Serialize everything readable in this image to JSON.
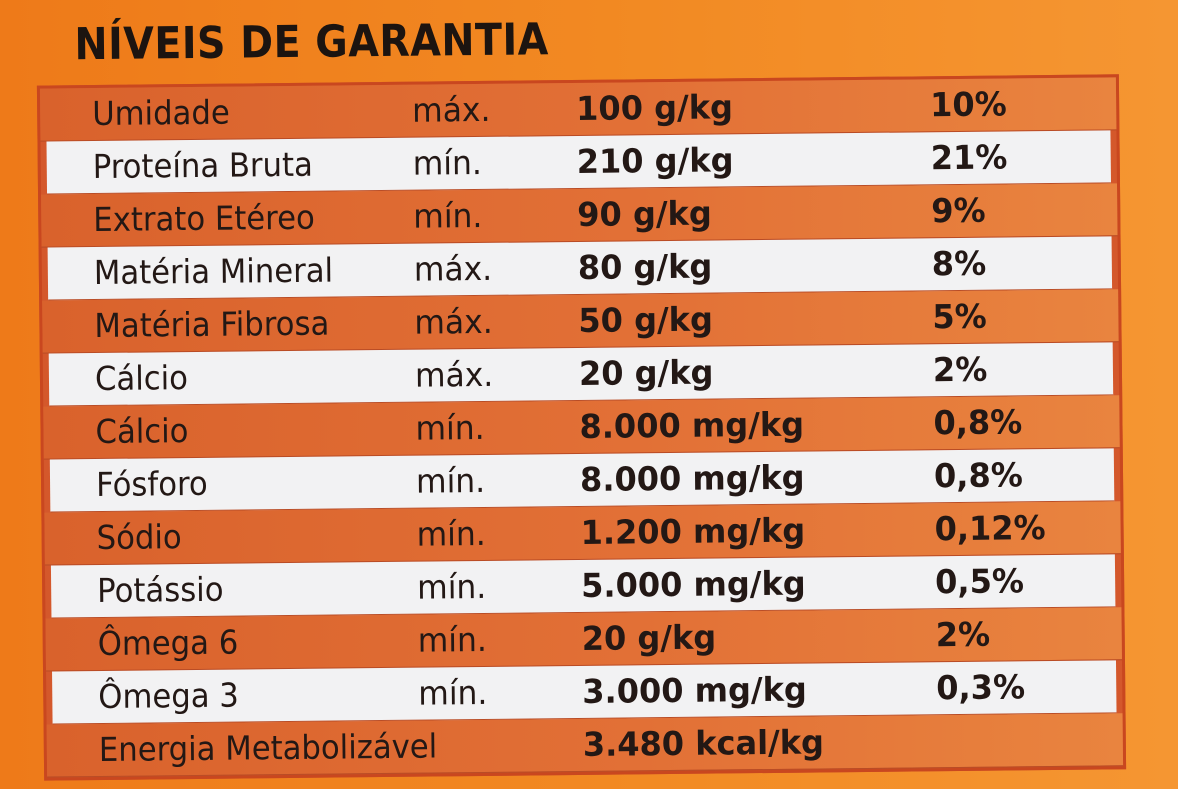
{
  "title": "NÍVEIS DE GARANTIA",
  "rows": [
    {
      "nutrient": "Umidade",
      "kind": "máx.",
      "value": "100 g/kg",
      "percent": "10%"
    },
    {
      "nutrient": "Proteína Bruta",
      "kind": "mín.",
      "value": "210 g/kg",
      "percent": "21%"
    },
    {
      "nutrient": "Extrato Etéreo",
      "kind": "mín.",
      "value": "90 g/kg",
      "percent": "9%"
    },
    {
      "nutrient": "Matéria Mineral",
      "kind": "máx.",
      "value": "80 g/kg",
      "percent": "8%"
    },
    {
      "nutrient": "Matéria Fibrosa",
      "kind": "máx.",
      "value": "50 g/kg",
      "percent": "5%"
    },
    {
      "nutrient": "Cálcio",
      "kind": "máx.",
      "value": "20 g/kg",
      "percent": "2%"
    },
    {
      "nutrient": "Cálcio",
      "kind": "mín.",
      "value": "8.000 mg/kg",
      "percent": "0,8%"
    },
    {
      "nutrient": "Fósforo",
      "kind": "mín.",
      "value": "8.000 mg/kg",
      "percent": "0,8%"
    },
    {
      "nutrient": "Sódio",
      "kind": "mín.",
      "value": "1.200 mg/kg",
      "percent": "0,12%"
    },
    {
      "nutrient": "Potássio",
      "kind": "mín.",
      "value": "5.000 mg/kg",
      "percent": "0,5%"
    },
    {
      "nutrient": "Ômega 6",
      "kind": "mín.",
      "value": "20 g/kg",
      "percent": "2%"
    },
    {
      "nutrient": "Ômega 3",
      "kind": "mín.",
      "value": "3.000 mg/kg",
      "percent": "0,3%"
    },
    {
      "nutrient": "Energia Metabolizável",
      "kind": "",
      "value": "3.480 kcal/kg",
      "percent": ""
    }
  ],
  "colors": {
    "background": "#f28a23",
    "band_orange": "#e27036",
    "band_white": "#f2f2f3",
    "border": "#c9471f",
    "text": "#231815"
  }
}
